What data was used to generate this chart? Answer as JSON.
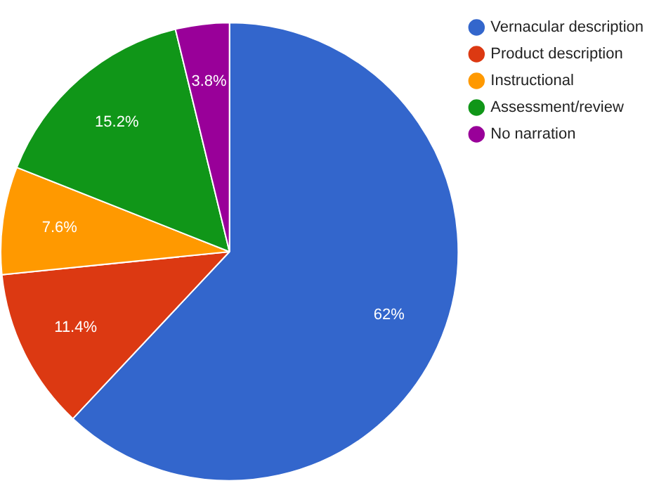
{
  "chart_data": {
    "type": "pie",
    "categories": [
      "Vernacular description",
      "Product description",
      "Instructional",
      "Assessment/review",
      "No narration"
    ],
    "values": [
      62,
      11.4,
      7.6,
      15.2,
      3.8
    ],
    "colors": [
      "#3366cc",
      "#dc3912",
      "#ff9900",
      "#109618",
      "#990099"
    ],
    "value_labels": [
      "62%",
      "11.4%",
      "7.6%",
      "15.2%",
      "3.8%"
    ],
    "legend": "top right"
  }
}
